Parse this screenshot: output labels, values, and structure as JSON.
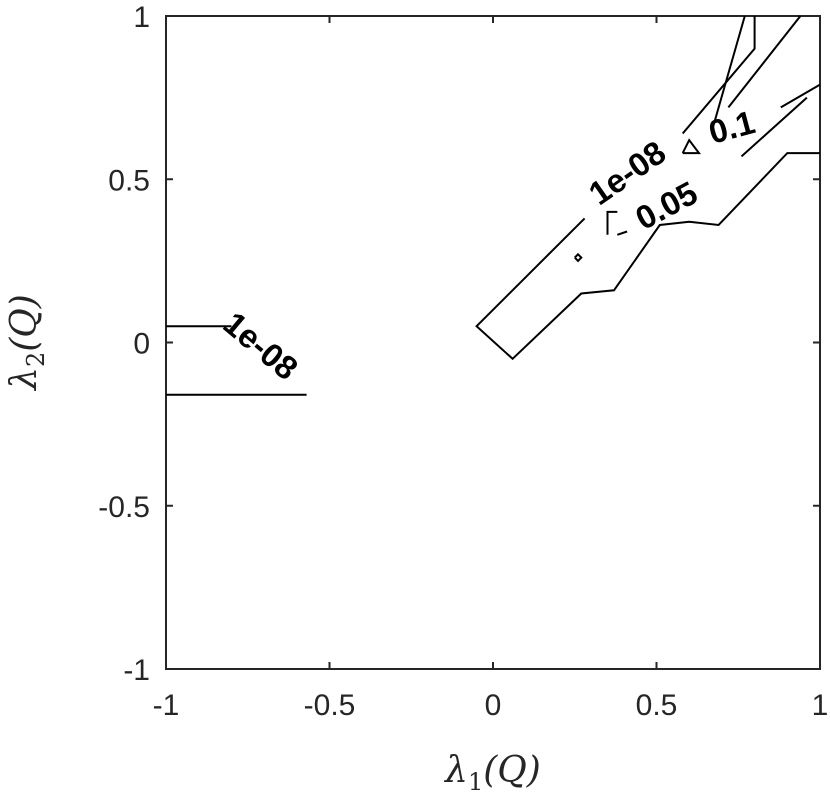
{
  "chart_data": {
    "type": "contour",
    "title": "",
    "xlabel": {
      "base": "λ",
      "sub": "1",
      "arg": "(Q)"
    },
    "ylabel": {
      "base": "λ",
      "sub": "2",
      "arg": "(Q)"
    },
    "xlim": [
      -1,
      1
    ],
    "ylim": [
      -1,
      1
    ],
    "xticks": [
      -1,
      -0.5,
      0,
      0.5,
      1
    ],
    "yticks": [
      -1,
      -0.5,
      0,
      0.5,
      1
    ],
    "xtick_labels": [
      "-1",
      "-0.5",
      "0",
      "0.5",
      "1"
    ],
    "ytick_labels": [
      "-1",
      "-0.5",
      "0",
      "0.5",
      "1"
    ],
    "grid": false,
    "levels": [
      {
        "level": "1e-08",
        "paths": [
          [
            [
              -1,
              0.05
            ],
            [
              -0.8,
              0.05
            ]
          ],
          [
            [
              -1,
              -0.16
            ],
            [
              -0.57,
              -0.16
            ]
          ],
          [
            [
              0.28,
              0.38
            ],
            [
              -0.05,
              0.05
            ],
            [
              0.06,
              -0.05
            ],
            [
              0.27,
              0.15
            ],
            [
              0.37,
              0.16
            ],
            [
              0.51,
              0.36
            ],
            [
              0.6,
              0.37
            ],
            [
              0.69,
              0.36
            ],
            [
              0.9,
              0.58
            ],
            [
              1,
              0.58
            ]
          ],
          [
            [
              0.58,
              0.64
            ],
            [
              0.8,
              0.9
            ],
            [
              0.8,
              1
            ]
          ],
          [
            [
              0.25,
              0.26
            ],
            [
              0.26,
              0.25
            ],
            [
              0.27,
              0.26
            ],
            [
              0.26,
              0.27
            ],
            [
              0.25,
              0.26
            ]
          ]
        ],
        "labels": [
          {
            "text": "1e-08",
            "x": -0.71,
            "y": -0.01,
            "angle": 40
          },
          {
            "text": "1e-08",
            "x": 0.41,
            "y": 0.52,
            "angle": -35
          }
        ]
      },
      {
        "level": "0.05",
        "paths": [
          [
            [
              0.72,
              0.72
            ],
            [
              0.94,
              1
            ]
          ],
          [
            [
              0.35,
              0.33
            ],
            [
              0.35,
              0.4
            ],
            [
              0.38,
              0.4
            ]
          ],
          [
            [
              0.38,
              0.33
            ],
            [
              0.41,
              0.34
            ]
          ]
        ],
        "labels": [
          {
            "text": "0.05",
            "x": 0.53,
            "y": 0.42,
            "angle": -28
          }
        ]
      },
      {
        "level": "0.1",
        "paths": [
          [
            [
              0.67,
              0.65
            ],
            [
              0.77,
              1
            ]
          ],
          [
            [
              0.76,
              0.57
            ],
            [
              0.96,
              0.75
            ]
          ],
          [
            [
              0.88,
              0.72
            ],
            [
              1,
              0.79
            ]
          ],
          [
            [
              0.58,
              0.58
            ],
            [
              0.6,
              0.62
            ],
            [
              0.63,
              0.58
            ],
            [
              0.58,
              0.58
            ]
          ]
        ],
        "labels": [
          {
            "text": "0.1",
            "x": 0.73,
            "y": 0.66,
            "angle": -15
          }
        ]
      }
    ]
  }
}
